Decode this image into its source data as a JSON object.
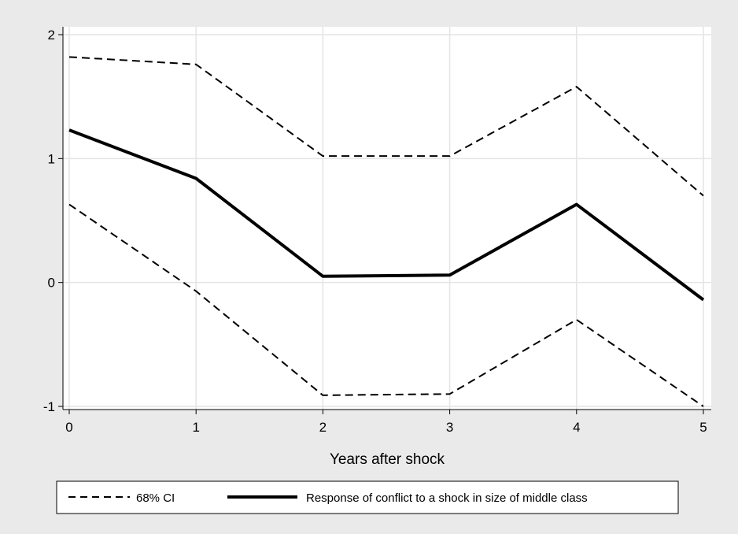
{
  "chart_data": {
    "type": "line",
    "title": "",
    "xlabel": "Years after shock",
    "ylabel": "",
    "x": [
      0,
      1,
      2,
      3,
      4,
      5
    ],
    "xlim": [
      0,
      5
    ],
    "ylim": [
      -1,
      2
    ],
    "x_ticks": [
      0,
      1,
      2,
      3,
      4,
      5
    ],
    "y_ticks": [
      -1,
      0,
      1,
      2
    ],
    "x_tick_labels": [
      "0",
      "1",
      "2",
      "3",
      "4",
      "5"
    ],
    "y_tick_labels": [
      "-1",
      "0",
      "1",
      "2"
    ],
    "grid": true,
    "legend_position": "bottom",
    "series": [
      {
        "name": "68% CI",
        "style": "dashed",
        "color": "#000000",
        "values": [
          1.82,
          1.76,
          1.02,
          1.02,
          1.58,
          0.7
        ]
      },
      {
        "name": "",
        "style": "dashed",
        "color": "#000000",
        "values": [
          0.63,
          -0.07,
          -0.91,
          -0.9,
          -0.3,
          -1.0
        ]
      },
      {
        "name": "Response of conflict to a shock in size of middle class",
        "style": "solid",
        "color": "#000000",
        "values": [
          1.23,
          0.84,
          0.05,
          0.06,
          0.63,
          -0.14
        ]
      }
    ]
  }
}
